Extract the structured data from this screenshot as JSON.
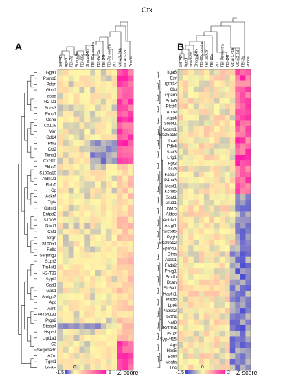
{
  "figure": {
    "title": "Ctx",
    "panel_letters": [
      "A",
      "B"
    ]
  },
  "chart_data": [
    {
      "type": "heatmap",
      "panel": "A",
      "columns": [
        "5XFAD",
        "Aged",
        "TBI-7d",
        "Sham-5d",
        "TBI-60d",
        "Sham-24h",
        "TBI-60d contra",
        "TBI-7d Ctrl",
        "TBI-24h",
        "TBI-7d contra",
        "WT",
        "MCAO-24h",
        "MCAO-5d",
        "Prions"
      ],
      "rows": [
        "Gga1",
        "Psmb8",
        "Pdpn",
        "Gbp2",
        "aspg",
        "H2-D1",
        "Socs3",
        "Emp1",
        "Osmr",
        "Cd109",
        "Vim",
        "Cd14",
        "Ptx3",
        "Ccl2",
        "Timp1",
        "Cxcl10",
        "Fkbp5",
        "S100a10",
        "Aldh1l1",
        "Fbln5",
        "Cp",
        "Ackr4",
        "Tgfa",
        "Gstm1",
        "Entpd2",
        "S100B",
        "Nwd1",
        "Csf1",
        "Srgn",
        "S100a1",
        "Palld",
        "Serping1",
        "S1pr3",
        "Tm4sf1",
        "H2-T23",
        "Sypl2",
        "Gad1",
        "Gas1",
        "Amigo2",
        "Apc",
        "Arntl",
        "AI464131",
        "Ptgs2",
        "Steap4",
        "Hspb1",
        "Ugt1a1",
        "C3",
        "Serpina3n",
        "A2m",
        "Tgm1",
        "GFAP"
      ],
      "colorbar": {
        "min": -1.5,
        "mid": 0,
        "max": 5,
        "label": "Z-score",
        "colors": [
          "#3f3fd9",
          "#fff9a8",
          "#ff1aa8"
        ]
      }
    },
    {
      "type": "heatmap",
      "panel": "B",
      "columns": [
        "5XFAD",
        "Aged",
        "Sham-5d",
        "Sham-24h",
        "TBI-60d contra",
        "TBI-7d Ctrl",
        "TBI-60d",
        "WT",
        "TBI-7d contra",
        "TBI-24h",
        "MCAO-24h",
        "MCAO-5d",
        "TBI-7d",
        "Prions"
      ],
      "rows": [
        "Itga6",
        "Ezr",
        "Igfbp2",
        "Clu",
        "Gpam",
        "Prdx6",
        "Plcd4",
        "Apoe",
        "Aqp4",
        "Srebf1",
        "Vcam1",
        "Slc25a18",
        "Lcat",
        "Pdk4",
        "Stat3",
        "Lrig1",
        "Fgf2",
        "Ifith3",
        "Fabp7",
        "P4ha3",
        "Mgst1",
        "Kcne5",
        "Soat1",
        "Glud1",
        "DMD",
        "Aldoc",
        "Adhfe1",
        "Asrgl1",
        "Slc6a5",
        "Pygb",
        "Slc39a12",
        "Sparcl1",
        "Dtna",
        "Acss1",
        "Fads2",
        "Phkg1",
        "Prodh",
        "Bcan",
        "Slc6a1",
        "Hapln1",
        "Maob",
        "Lpr4",
        "Papss2",
        "Gpc4",
        "Nat8",
        "Kctd14",
        "Fzd2",
        "Sypl4f15",
        "Agt",
        "Hes5",
        "Bdnf",
        "Vegfa",
        "Tnc"
      ],
      "colorbar": {
        "min": -1.5,
        "mid": 0,
        "max": 2,
        "label": "Z-score",
        "colors": [
          "#3f3fd9",
          "#fff9a8",
          "#ff1aa8"
        ]
      }
    }
  ]
}
